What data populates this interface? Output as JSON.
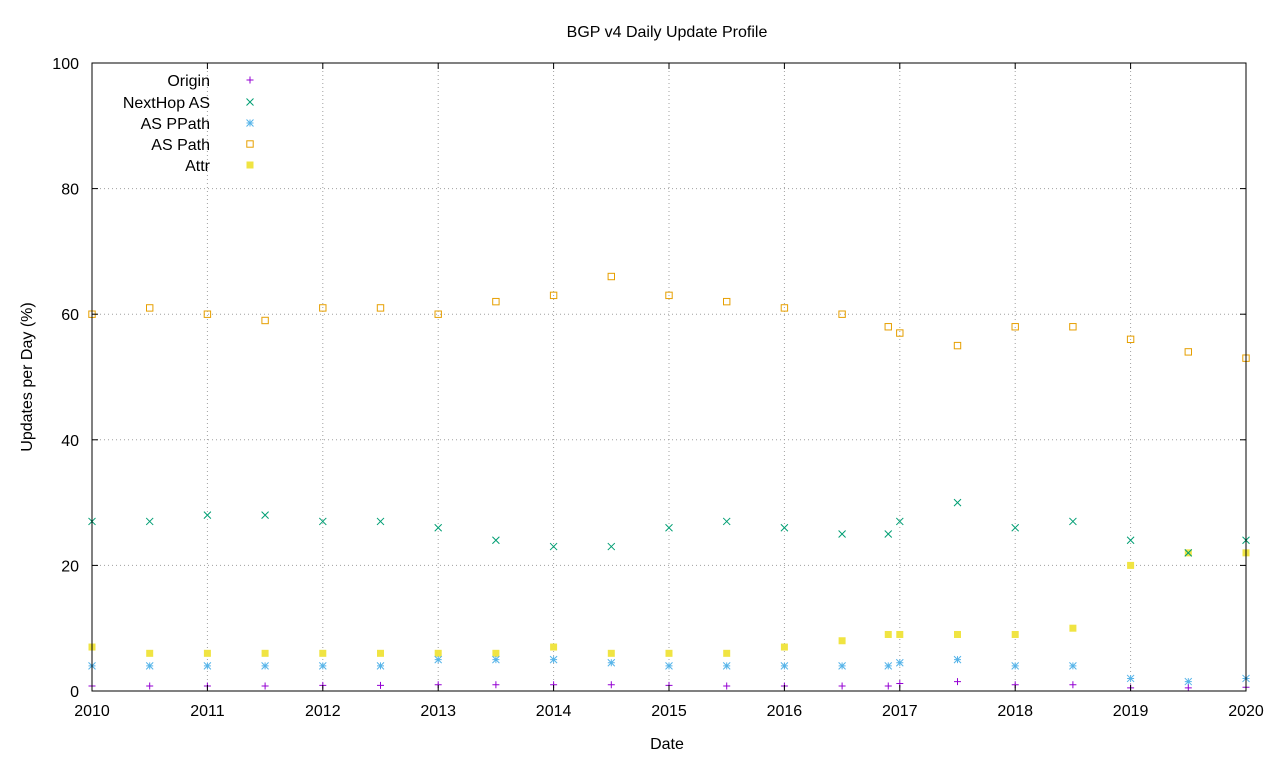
{
  "chart_data": {
    "type": "scatter",
    "title": "BGP v4 Daily Update Profile",
    "xlabel": "Date",
    "ylabel": "Updates per Day (%)",
    "xlim": [
      2010,
      2020
    ],
    "ylim": [
      0,
      100
    ],
    "x_ticks": [
      2010,
      2011,
      2012,
      2013,
      2014,
      2015,
      2016,
      2017,
      2018,
      2019,
      2020
    ],
    "x_tick_labels": [
      "2010",
      "2011",
      "2012",
      "2013",
      "2014",
      "2015",
      "2016",
      "2017",
      "2018",
      "2019",
      "2020"
    ],
    "y_ticks": [
      0,
      20,
      40,
      60,
      80,
      100
    ],
    "y_tick_labels": [
      "0",
      "20",
      "40",
      "60",
      "80",
      "100"
    ],
    "grid": true,
    "legend_position": "top-left",
    "data_gap": [
      2016.92,
      2017.0
    ],
    "series": [
      {
        "name": "Origin",
        "marker": "plus",
        "color": "#9400d3",
        "x": [
          2010.0,
          2010.5,
          2011.0,
          2011.5,
          2012.0,
          2012.5,
          2013.0,
          2013.5,
          2014.0,
          2014.5,
          2015.0,
          2015.5,
          2016.0,
          2016.5,
          2016.9,
          2017.0,
          2017.5,
          2018.0,
          2018.5,
          2019.0,
          2019.5,
          2020.0
        ],
        "values": [
          0.8,
          0.8,
          0.8,
          0.8,
          0.9,
          0.9,
          1.0,
          1.0,
          1.0,
          1.0,
          0.9,
          0.8,
          0.8,
          0.8,
          0.8,
          1.2,
          1.5,
          1.0,
          1.0,
          0.5,
          0.5,
          0.6
        ]
      },
      {
        "name": "NextHop AS",
        "marker": "x",
        "color": "#009e73",
        "x": [
          2010.0,
          2010.5,
          2011.0,
          2011.5,
          2012.0,
          2012.5,
          2013.0,
          2013.5,
          2014.0,
          2014.5,
          2015.0,
          2015.5,
          2016.0,
          2016.5,
          2016.9,
          2017.0,
          2017.5,
          2018.0,
          2018.5,
          2019.0,
          2019.5,
          2020.0
        ],
        "values": [
          27,
          27,
          28,
          28,
          27,
          27,
          26,
          24,
          23,
          23,
          26,
          27,
          26,
          25,
          25,
          27,
          30,
          26,
          27,
          24,
          22,
          24
        ]
      },
      {
        "name": "AS PPath",
        "marker": "star",
        "color": "#56b4e9",
        "x": [
          2010.0,
          2010.5,
          2011.0,
          2011.5,
          2012.0,
          2012.5,
          2013.0,
          2013.5,
          2014.0,
          2014.5,
          2015.0,
          2015.5,
          2016.0,
          2016.5,
          2016.9,
          2017.0,
          2017.5,
          2018.0,
          2018.5,
          2019.0,
          2019.5,
          2020.0
        ],
        "values": [
          4.0,
          4.0,
          4.0,
          4.0,
          4.0,
          4.0,
          5.0,
          5.0,
          5.0,
          4.5,
          4.0,
          4.0,
          4.0,
          4.0,
          4.0,
          4.5,
          5.0,
          4.0,
          4.0,
          2.0,
          1.5,
          2.0
        ]
      },
      {
        "name": "AS Path",
        "marker": "open-square",
        "color": "#e69f00",
        "x": [
          2010.0,
          2010.5,
          2011.0,
          2011.5,
          2012.0,
          2012.5,
          2013.0,
          2013.5,
          2014.0,
          2014.5,
          2015.0,
          2015.5,
          2016.0,
          2016.5,
          2016.9,
          2017.0,
          2017.5,
          2018.0,
          2018.5,
          2019.0,
          2019.5,
          2020.0
        ],
        "values": [
          60,
          61,
          60,
          59,
          61,
          61,
          60,
          62,
          63,
          66,
          63,
          62,
          61,
          60,
          58,
          57,
          55,
          58,
          58,
          56,
          54,
          53
        ]
      },
      {
        "name": "Attr",
        "marker": "filled-square",
        "color": "#f0e442",
        "x": [
          2010.0,
          2010.5,
          2011.0,
          2011.5,
          2012.0,
          2012.5,
          2013.0,
          2013.5,
          2014.0,
          2014.5,
          2015.0,
          2015.5,
          2016.0,
          2016.5,
          2016.9,
          2017.0,
          2017.5,
          2018.0,
          2018.5,
          2019.0,
          2019.5,
          2020.0
        ],
        "values": [
          7,
          6,
          6,
          6,
          6,
          6,
          6,
          6,
          7,
          6,
          6,
          6,
          7,
          8,
          9,
          9,
          9,
          9,
          10,
          20,
          22,
          22
        ]
      }
    ]
  }
}
